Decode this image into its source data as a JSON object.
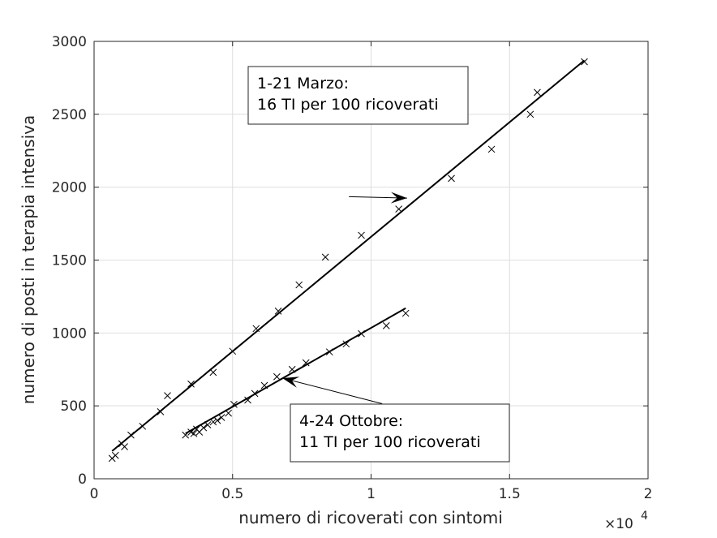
{
  "chart_data": {
    "type": "scatter",
    "xlabel": "numero di ricoverati con sintomi",
    "ylabel": "numero di posti in terapia intensiva",
    "x_exponent_base": "×10",
    "x_exponent_power": "4",
    "xlim": [
      0,
      20000
    ],
    "ylim": [
      0,
      3000
    ],
    "x_ticks": [
      0,
      5000,
      10000,
      15000,
      20000
    ],
    "x_tick_labels": [
      "0",
      "0.5",
      "1",
      "1.5",
      "2"
    ],
    "y_ticks": [
      0,
      500,
      1000,
      1500,
      2000,
      2500,
      3000
    ],
    "y_tick_labels": [
      "0",
      "500",
      "1000",
      "1500",
      "2000",
      "2500",
      "3000"
    ],
    "grid": true,
    "colors": {
      "marks": "#000000",
      "grid": "#dedede",
      "axes": "#262626"
    },
    "series": [
      {
        "points": [
          [
            650,
            140
          ],
          [
            770,
            160
          ],
          [
            1000,
            240
          ],
          [
            1100,
            220
          ],
          [
            1330,
            300
          ],
          [
            1750,
            360
          ],
          [
            2400,
            460
          ],
          [
            2650,
            570
          ],
          [
            3500,
            650
          ],
          [
            4300,
            730
          ],
          [
            5000,
            875
          ],
          [
            5850,
            1030
          ],
          [
            6650,
            1150
          ],
          [
            7400,
            1330
          ],
          [
            8350,
            1520
          ],
          [
            9650,
            1670
          ],
          [
            11000,
            1850
          ],
          [
            12900,
            2060
          ],
          [
            14350,
            2260
          ],
          [
            15750,
            2500
          ],
          [
            16000,
            2650
          ],
          [
            17700,
            2860
          ]
        ],
        "fit": {
          "x": [
            650,
            17700
          ],
          "y": [
            190,
            2870
          ]
        }
      },
      {
        "points": [
          [
            3300,
            300
          ],
          [
            3500,
            320
          ],
          [
            3600,
            310
          ],
          [
            3700,
            340
          ],
          [
            3800,
            320
          ],
          [
            3950,
            350
          ],
          [
            4100,
            370
          ],
          [
            4300,
            390
          ],
          [
            4450,
            400
          ],
          [
            4600,
            420
          ],
          [
            4850,
            450
          ],
          [
            5050,
            510
          ],
          [
            5550,
            540
          ],
          [
            5800,
            585
          ],
          [
            6150,
            640
          ],
          [
            6600,
            700
          ],
          [
            7150,
            750
          ],
          [
            7650,
            795
          ],
          [
            8500,
            870
          ],
          [
            9100,
            925
          ],
          [
            9650,
            995
          ],
          [
            10550,
            1050
          ],
          [
            11250,
            1135
          ]
        ],
        "fit": {
          "x": [
            3300,
            11250
          ],
          "y": [
            310,
            1170
          ]
        }
      }
    ],
    "annotations": [
      {
        "lines": [
          "1-21 Marzo:",
          "16 TI per 100 ricoverati"
        ],
        "arrow_from": [
          9200,
          1935
        ],
        "arrow_to": [
          11300,
          1925
        ]
      },
      {
        "lines": [
          "4-24 Ottobre:",
          "11 TI per 100 ricoverati"
        ],
        "arrow_from": [
          10400,
          515
        ],
        "arrow_to": [
          6800,
          690
        ]
      }
    ]
  }
}
